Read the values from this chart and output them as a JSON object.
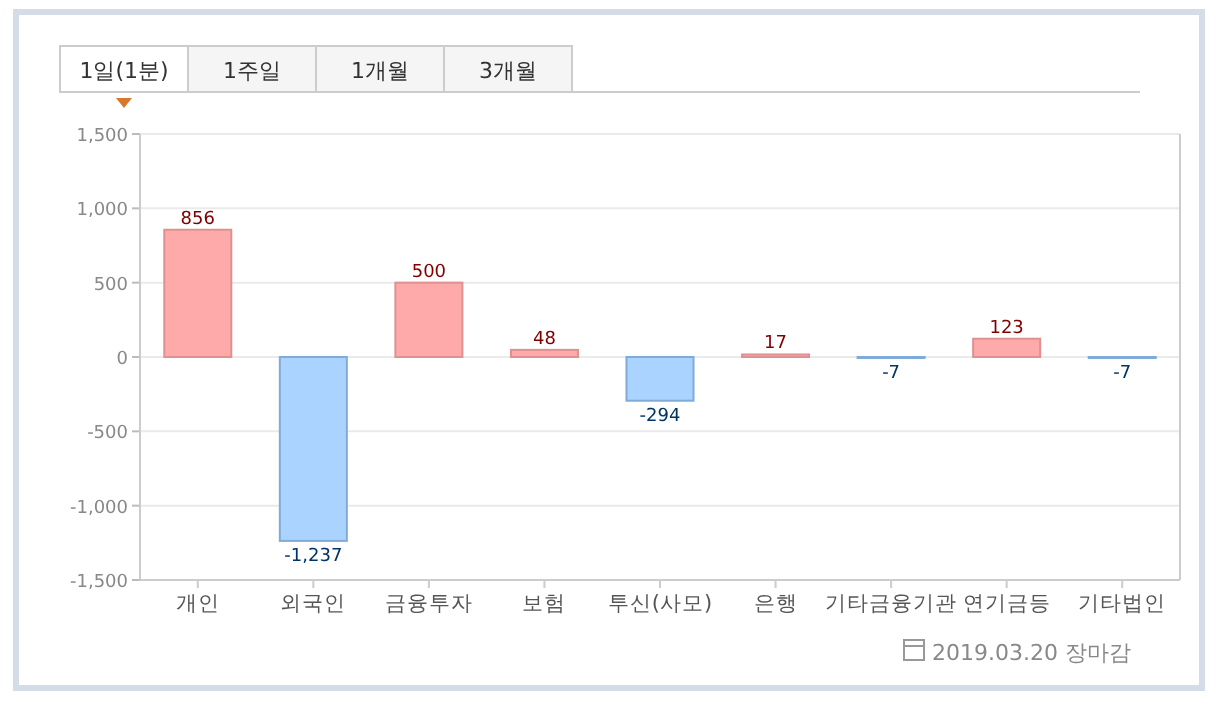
{
  "chart_data": {
    "type": "bar",
    "categories": [
      "개인",
      "외국인",
      "금융투자",
      "보험",
      "투신(사모)",
      "은행",
      "기타금융기관",
      "연기금등",
      "기타법인"
    ],
    "values": [
      856,
      -1237,
      500,
      48,
      -294,
      17,
      -7,
      123,
      -7
    ],
    "colors": [
      "#ffaaaa",
      "#aad4ff",
      "#ffaaaa",
      "#ffaaaa",
      "#aad4ff",
      "#ffaaaa",
      "#aad4ff",
      "#ffaaaa",
      "#aad4ff"
    ],
    "value_labels": [
      "856",
      "-1,237",
      "500",
      "48",
      "-294",
      "17",
      "-7",
      "123",
      "-7"
    ],
    "ylim": [
      -1500,
      1500
    ],
    "yticks": [
      {
        "value": -1500,
        "label": "-1,500"
      },
      {
        "value": -1000,
        "label": "-1,000"
      },
      -500,
      0,
      500,
      {
        "value": 1000,
        "label": "1,000"
      },
      {
        "value": 1500,
        "label": "1,500"
      }
    ],
    "grid": "y",
    "annotations": [
      "1일(1분)",
      "1주일",
      "1개월",
      "3개월",
      "2019.03.20 장마감"
    ]
  }
}
